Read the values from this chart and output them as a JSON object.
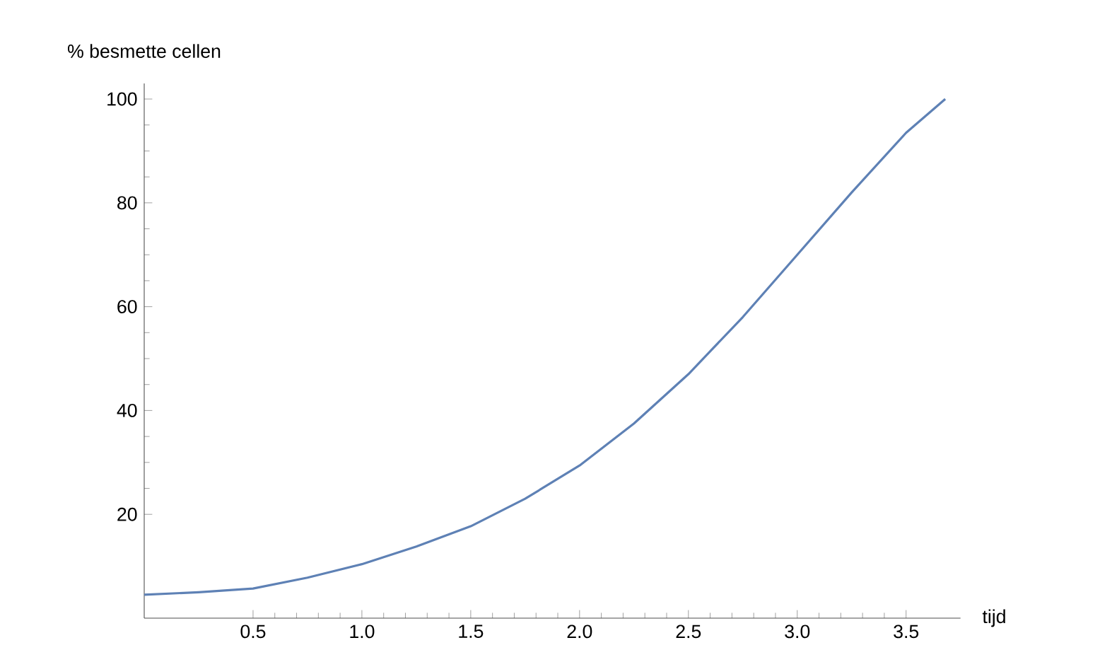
{
  "chart_data": {
    "type": "line",
    "xlabel": "tijd",
    "ylabel": "% besmette cellen",
    "color": "#5e81b5",
    "x": [
      0,
      0.25,
      0.5,
      0.75,
      1.0,
      1.25,
      1.5,
      1.75,
      2.0,
      2.25,
      2.5,
      2.75,
      3.0,
      3.25,
      3.5,
      3.68
    ],
    "values": [
      4.5,
      5,
      5.7,
      7.8,
      10.4,
      13.8,
      17.7,
      23,
      29.4,
      37.5,
      47,
      58,
      70,
      82,
      93.5,
      100
    ],
    "xlim": [
      0,
      3.75
    ],
    "ylim": [
      0,
      103
    ],
    "xticks": [
      0.5,
      {
        "value": 1,
        "label": "1.0"
      },
      1.5,
      {
        "value": 2,
        "label": "2.0"
      },
      2.5,
      {
        "value": 3,
        "label": "3.0"
      },
      3.5
    ],
    "yticks": [
      20,
      40,
      60,
      80,
      100
    ]
  }
}
